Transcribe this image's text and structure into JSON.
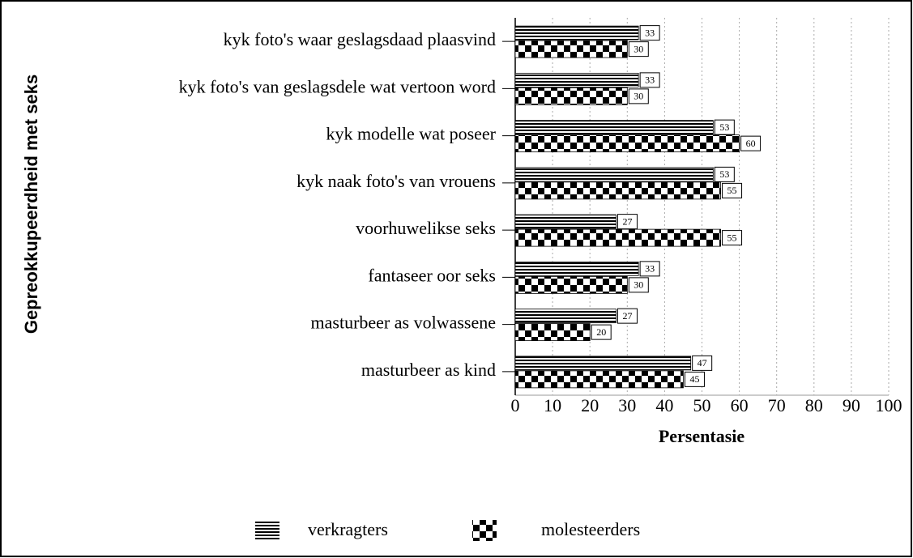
{
  "chart_data": {
    "type": "bar",
    "orientation": "horizontal",
    "y_label": "Gepreokkupeerdheid met seks",
    "x_label": "Persentasie",
    "categories": [
      "kyk foto's waar geslagsdaad plaasvind",
      "kyk foto's van geslagsdele wat vertoon word",
      "kyk modelle wat poseer",
      "kyk naak foto's van vrouens",
      "voorhuwelikse seks",
      "fantaseer oor seks",
      "masturbeer as volwassene",
      "masturbeer as kind"
    ],
    "series": [
      {
        "name": "verkragters",
        "color": "#000000",
        "pattern": "horizontal-stripes",
        "values": [
          33,
          33,
          53,
          53,
          27,
          33,
          27,
          47
        ]
      },
      {
        "name": "molesteerders",
        "color": "#000000",
        "pattern": "checkerboard",
        "values": [
          30,
          30,
          60,
          55,
          55,
          30,
          20,
          45
        ]
      }
    ],
    "xlim": [
      0,
      100
    ],
    "xticks": [
      0,
      10,
      20,
      30,
      40,
      50,
      60,
      70,
      80,
      90,
      100
    ],
    "grid": true,
    "legend": "bottom"
  }
}
